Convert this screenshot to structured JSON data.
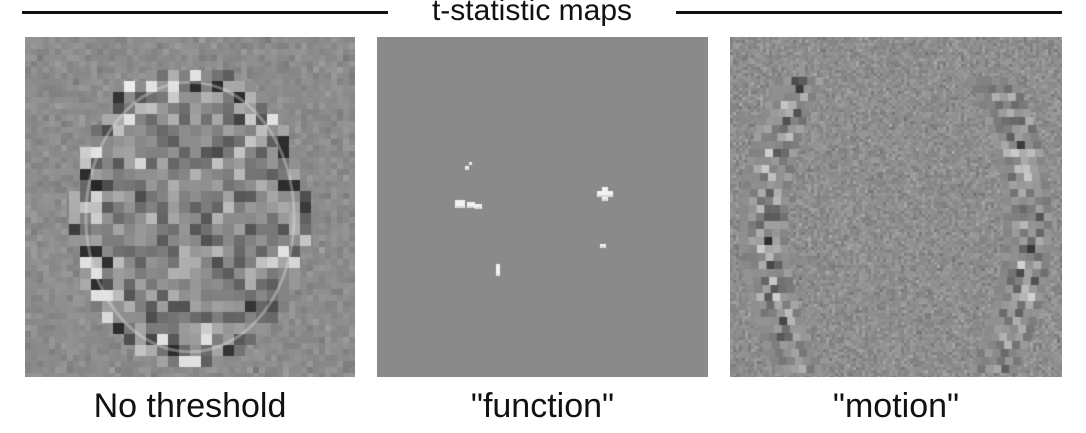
{
  "figure": {
    "title": "t-statistic maps",
    "panels": [
      {
        "id": "no-threshold",
        "caption": "No threshold",
        "background": "#8c8c8c"
      },
      {
        "id": "function",
        "caption": "\"function\"",
        "background": "#8a8a8a"
      },
      {
        "id": "motion",
        "caption": "\"motion\"",
        "background": "#8e8e8e"
      }
    ]
  }
}
